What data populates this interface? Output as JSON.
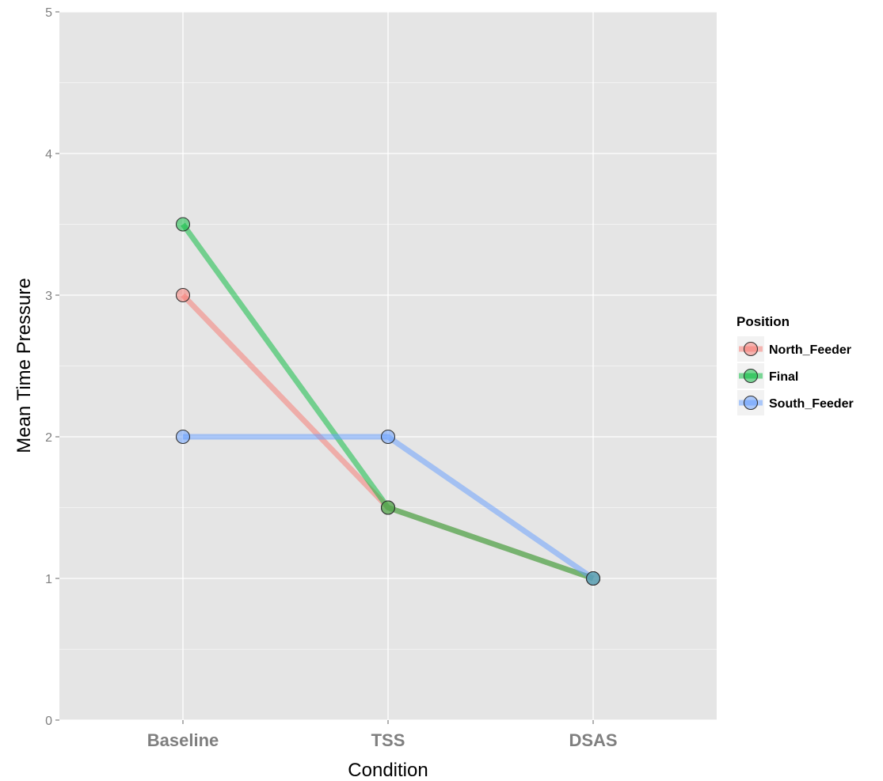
{
  "chart_data": {
    "type": "line",
    "title": "",
    "xlabel": "Condition",
    "ylabel": "Mean Time Pressure",
    "categories": [
      "Baseline",
      "TSS",
      "DSAS"
    ],
    "ylim": [
      0,
      5
    ],
    "yticks": [
      "0",
      "1",
      "2",
      "3",
      "4",
      "5"
    ],
    "grid": true,
    "legend": {
      "title": "Position",
      "placement": "right"
    },
    "series": [
      {
        "name": "North_Feeder",
        "color": "#f8766d",
        "values": [
          3,
          1.5,
          1
        ]
      },
      {
        "name": "Final",
        "color": "#00ba38",
        "values": [
          3.5,
          1.5,
          1
        ]
      },
      {
        "name": "South_Feeder",
        "color": "#619cff",
        "values": [
          2,
          2,
          1
        ]
      }
    ]
  }
}
